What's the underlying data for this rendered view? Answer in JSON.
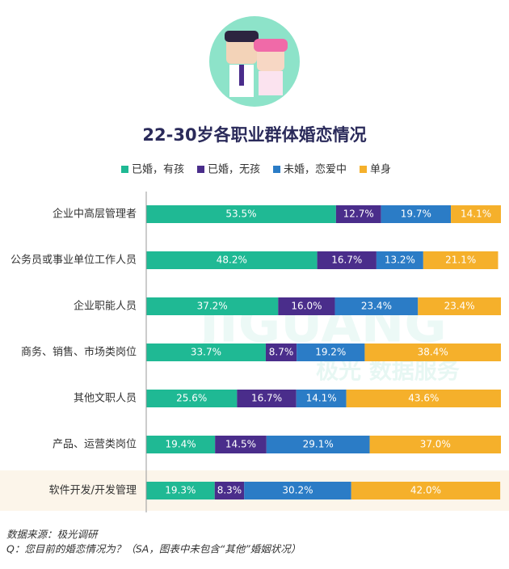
{
  "chart_data": {
    "type": "stacked-bar-horizontal",
    "title": "22-30岁各职业群体婚恋情况",
    "watermark": [
      "JIGUANG",
      "极光 数据服务"
    ],
    "categories": [
      "企业中高层管理者",
      "公务员或事业单位工作人员",
      "企业职能人员",
      "商务、销售、市场类岗位",
      "其他文职人员",
      "产品、运营类岗位",
      "软件开发/开发管理"
    ],
    "xlim": [
      0,
      100
    ],
    "series": [
      {
        "name": "已婚，有孩",
        "color": "#1fb994",
        "values": [
          53.5,
          48.2,
          37.2,
          33.7,
          25.6,
          19.4,
          19.3
        ],
        "value_labels": [
          "53.5%",
          "48.2%",
          "37.2%",
          "33.7%",
          "25.6%",
          "19.4%",
          "19.3%"
        ]
      },
      {
        "name": "已婚，无孩",
        "color": "#4a2d8b",
        "values": [
          12.7,
          16.7,
          16.0,
          8.7,
          16.7,
          14.5,
          8.3
        ],
        "value_labels": [
          "12.7%",
          "16.7%",
          "16.0%",
          "8.7%",
          "16.7%",
          "14.5%",
          "8.3%"
        ]
      },
      {
        "name": "未婚，恋爱中",
        "color": "#2b7cc6",
        "values": [
          19.7,
          13.2,
          23.4,
          19.2,
          14.1,
          29.1,
          30.2
        ],
        "value_labels": [
          "19.7%",
          "13.2%",
          "23.4%",
          "19.2%",
          "14.1%",
          "29.1%",
          "30.2%"
        ]
      },
      {
        "name": "单身",
        "color": "#f5b02b",
        "values": [
          14.1,
          21.1,
          23.4,
          38.4,
          43.6,
          37.0,
          42.0
        ],
        "value_labels": [
          "14.1%",
          "21.1%",
          "23.4%",
          "38.4%",
          "43.6%",
          "37.0%",
          "42.0%"
        ]
      }
    ],
    "notes": [
      "数据来源：极光调研",
      "Q：您目前的婚恋情况为？（SA，图表中未包含“其他”婚姻状况）"
    ]
  }
}
